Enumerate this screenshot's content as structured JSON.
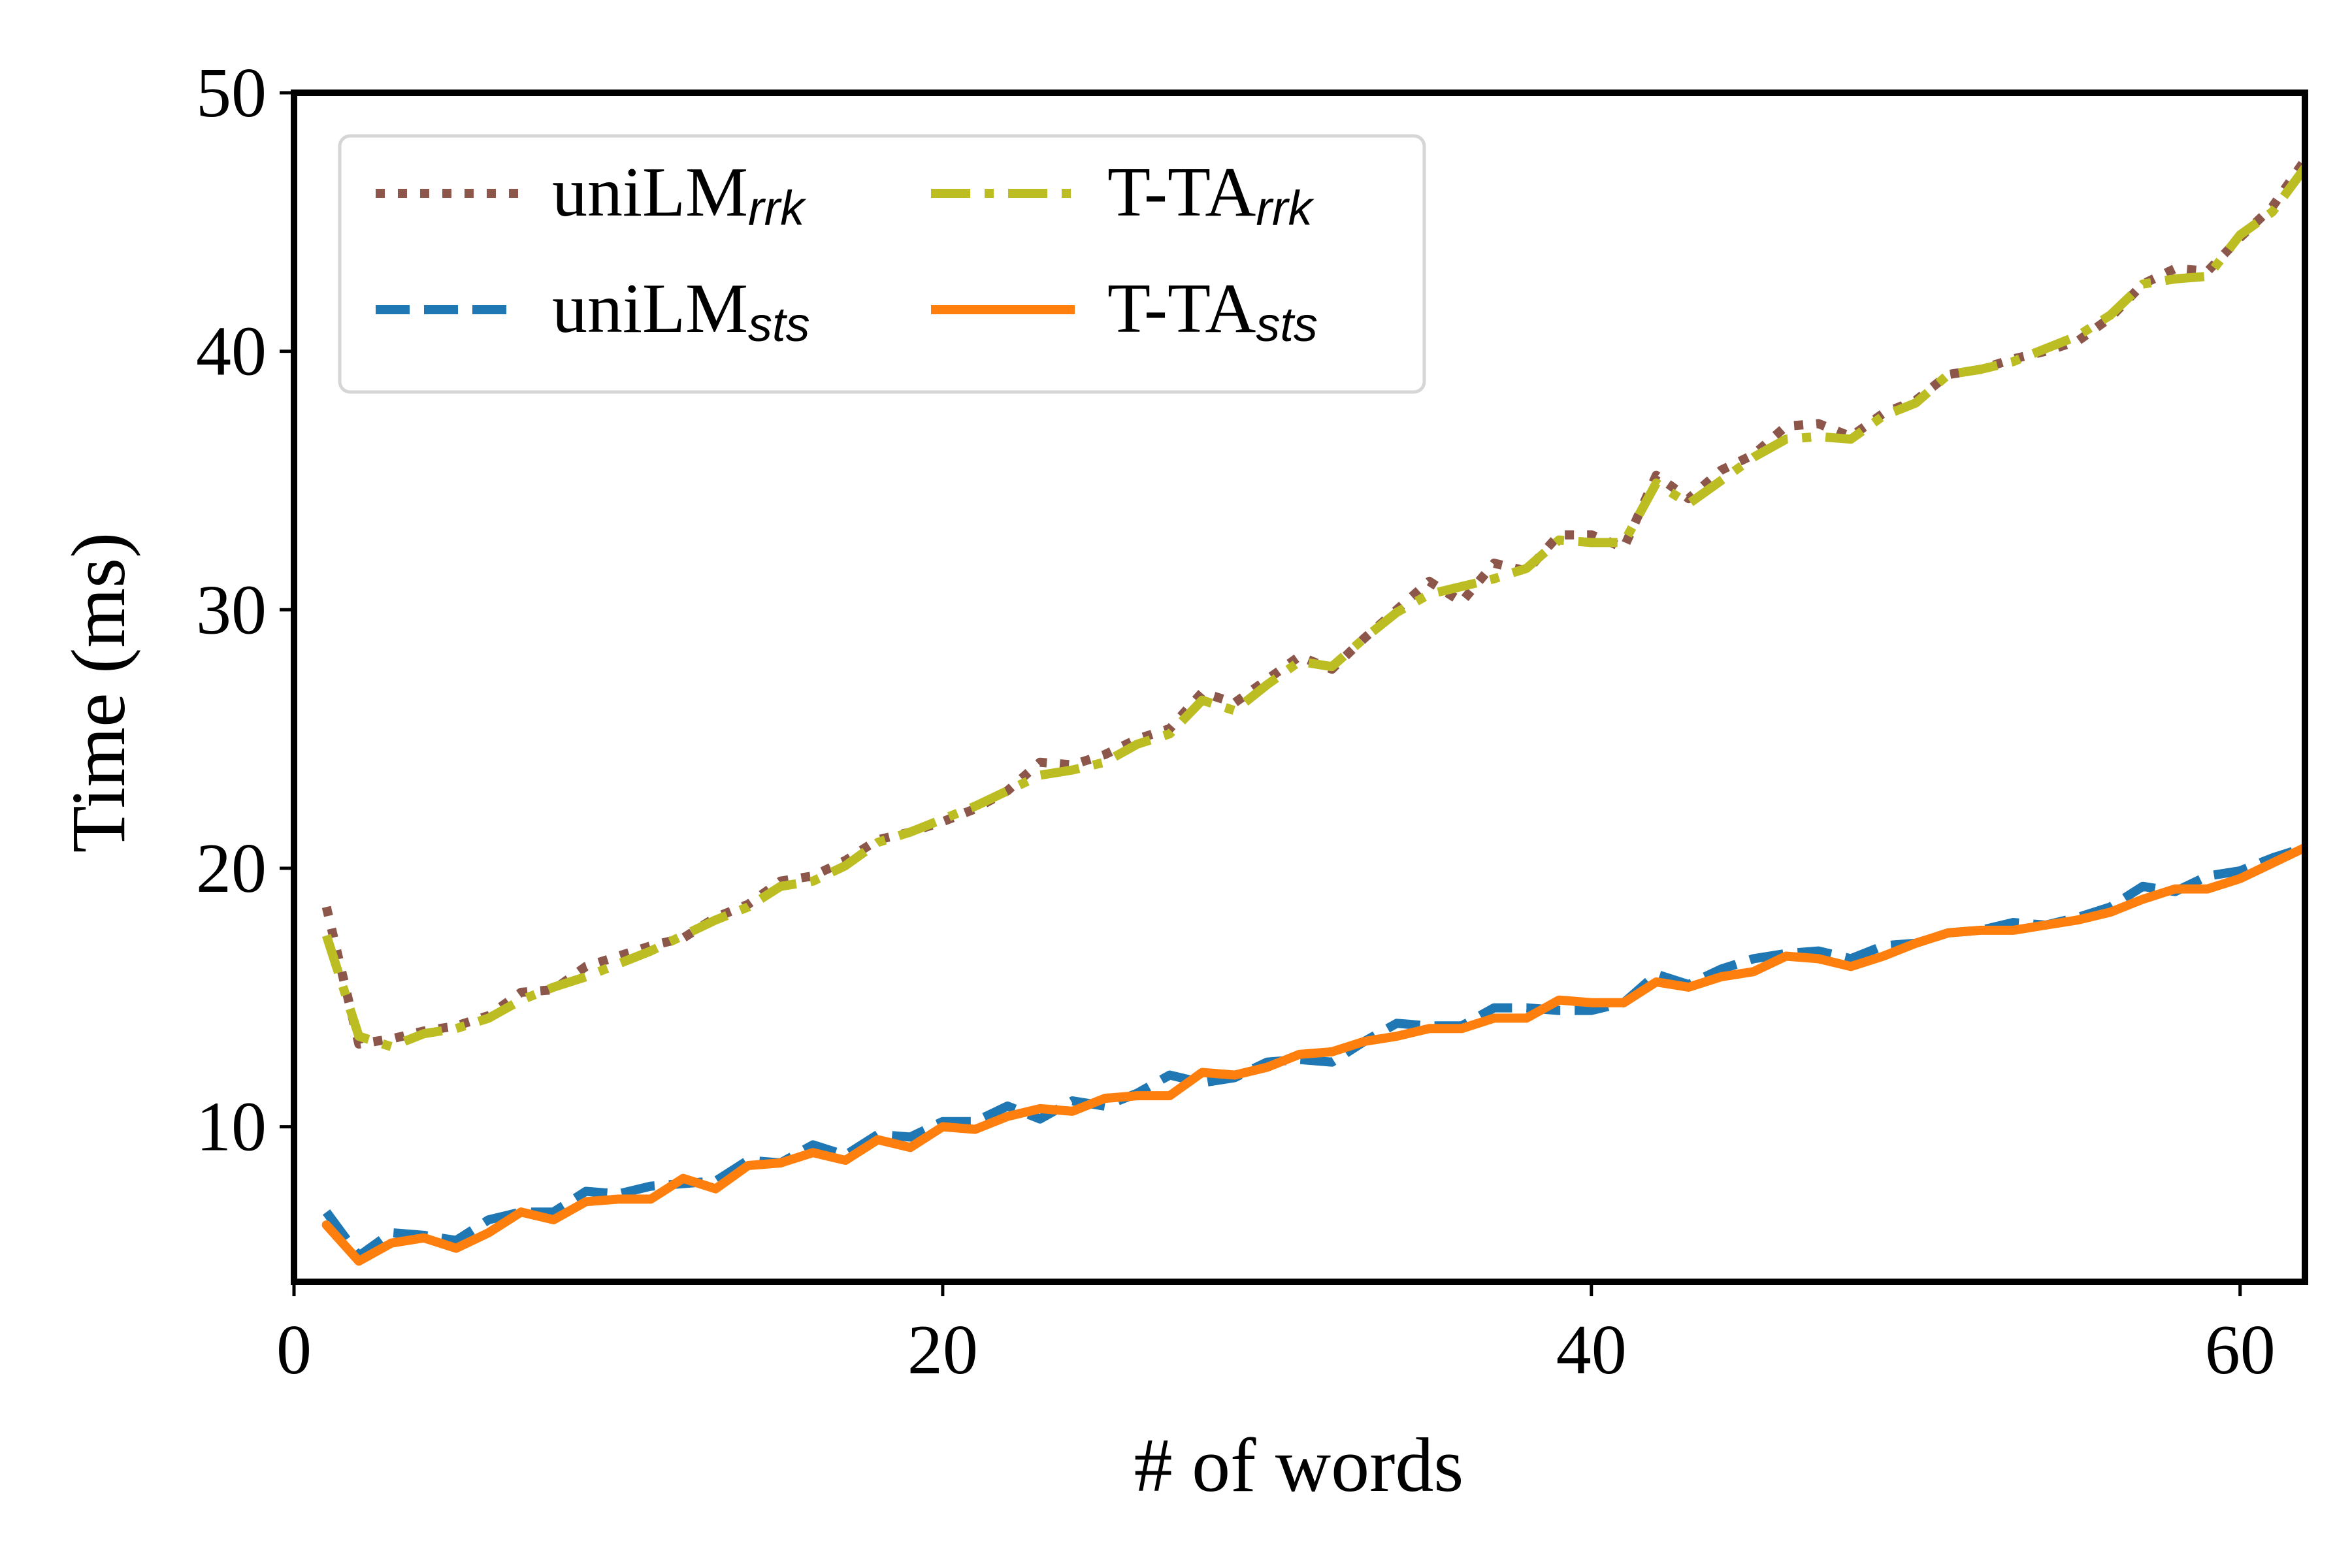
{
  "chart_data": {
    "type": "line",
    "xlabel": "# of words",
    "ylabel": "Time (ms)",
    "xlim": [
      0,
      62
    ],
    "ylim": [
      4,
      50
    ],
    "xticks": [
      0,
      20,
      40,
      60
    ],
    "yticks": [
      10,
      20,
      30,
      40,
      50
    ],
    "grid": false,
    "legend_placement": "top-left",
    "legend_columns": 2,
    "x": [
      1,
      2,
      3,
      4,
      5,
      6,
      7,
      8,
      9,
      10,
      11,
      12,
      13,
      14,
      15,
      16,
      17,
      18,
      19,
      20,
      21,
      22,
      23,
      24,
      25,
      26,
      27,
      28,
      29,
      30,
      31,
      32,
      33,
      34,
      35,
      36,
      37,
      38,
      39,
      40,
      41,
      42,
      43,
      44,
      45,
      46,
      47,
      48,
      49,
      50,
      51,
      52,
      53,
      54,
      55,
      56,
      57,
      58,
      59,
      60,
      61,
      62
    ],
    "series": [
      {
        "name": "uniLM",
        "subscript": "rrk",
        "color": "#8c564b",
        "dash": "dotted",
        "values": [
          18.5,
          13.2,
          13.4,
          13.7,
          13.9,
          14.3,
          15.2,
          15.3,
          16.2,
          16.6,
          17.0,
          17.3,
          18.1,
          18.6,
          19.5,
          19.7,
          20.3,
          21.1,
          21.4,
          21.8,
          22.3,
          23.0,
          24.1,
          24.0,
          24.4,
          25.0,
          25.4,
          26.8,
          26.4,
          27.3,
          28.2,
          27.7,
          28.9,
          30.0,
          31.1,
          30.3,
          31.8,
          31.5,
          32.9,
          32.9,
          32.4,
          35.2,
          34.3,
          35.4,
          36.0,
          37.1,
          37.2,
          36.7,
          37.6,
          38.1,
          39.1,
          39.3,
          39.7,
          40.0,
          40.4,
          41.3,
          42.6,
          43.2,
          43.1,
          44.4,
          45.6,
          47.4
        ]
      },
      {
        "name": "uniLM",
        "subscript": "sts",
        "color": "#1f77b4",
        "dash": "dashed",
        "values": [
          6.7,
          5.0,
          5.9,
          5.8,
          5.6,
          6.4,
          6.7,
          6.7,
          7.5,
          7.4,
          7.7,
          7.8,
          7.9,
          8.7,
          8.6,
          9.3,
          8.9,
          9.7,
          9.6,
          10.2,
          10.2,
          10.8,
          10.3,
          11.0,
          10.8,
          11.3,
          12.0,
          11.7,
          11.9,
          12.5,
          12.6,
          12.5,
          13.3,
          14.0,
          13.9,
          13.9,
          14.6,
          14.6,
          14.5,
          14.5,
          14.8,
          15.9,
          15.5,
          16.1,
          16.5,
          16.7,
          16.8,
          16.5,
          17.0,
          17.1,
          17.5,
          17.6,
          17.9,
          17.8,
          18.1,
          18.5,
          19.3,
          19.1,
          19.7,
          19.9,
          20.4,
          20.8
        ]
      },
      {
        "name": "T-TA",
        "subscript": "rrk",
        "color": "#bcbd22",
        "dash": "dashdot",
        "values": [
          17.4,
          13.5,
          13.1,
          13.6,
          13.8,
          14.2,
          14.9,
          15.4,
          15.8,
          16.3,
          16.8,
          17.4,
          18.0,
          18.5,
          19.3,
          19.5,
          20.1,
          21.0,
          21.4,
          21.9,
          22.4,
          23.0,
          23.6,
          23.8,
          24.1,
          24.8,
          25.2,
          26.5,
          26.1,
          27.1,
          28.0,
          27.8,
          28.9,
          29.9,
          30.6,
          30.9,
          31.2,
          31.6,
          32.7,
          32.6,
          32.6,
          34.9,
          34.1,
          35.0,
          35.9,
          36.6,
          36.7,
          36.6,
          37.5,
          38.0,
          39.1,
          39.3,
          39.6,
          40.1,
          40.6,
          41.4,
          42.6,
          42.8,
          42.9,
          44.5,
          45.4,
          47.1
        ]
      },
      {
        "name": "T-TA",
        "subscript": "sts",
        "color": "#ff7f0e",
        "dash": "solid",
        "values": [
          6.2,
          4.8,
          5.5,
          5.7,
          5.3,
          5.9,
          6.7,
          6.4,
          7.1,
          7.2,
          7.2,
          8.0,
          7.6,
          8.5,
          8.6,
          9.0,
          8.7,
          9.5,
          9.2,
          10.0,
          9.9,
          10.4,
          10.7,
          10.6,
          11.1,
          11.2,
          11.2,
          12.1,
          12.0,
          12.3,
          12.8,
          12.9,
          13.3,
          13.5,
          13.8,
          13.8,
          14.2,
          14.2,
          14.9,
          14.8,
          14.8,
          15.6,
          15.4,
          15.8,
          16.0,
          16.6,
          16.5,
          16.2,
          16.6,
          17.1,
          17.5,
          17.6,
          17.6,
          17.8,
          18.0,
          18.3,
          18.8,
          19.2,
          19.2,
          19.6,
          20.2,
          20.8
        ]
      }
    ]
  }
}
